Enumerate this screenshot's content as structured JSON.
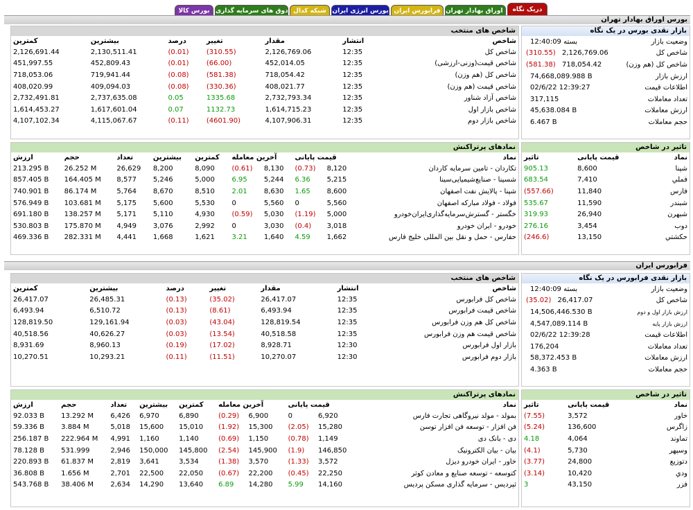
{
  "tabs": [
    {
      "label": "دریک نگاه",
      "bg": "#b30c0c"
    },
    {
      "label": "بورس اوراق بهادار تهران",
      "bg": "#2f7d1c"
    },
    {
      "label": "فرابورس ایران",
      "bg": "#d4b514"
    },
    {
      "label": "بورس انرژی ایران",
      "bg": "#1c1fa3"
    },
    {
      "label": "شبکه کدال",
      "bg": "#d4b514"
    },
    {
      "label": "صندوق های سرمایه گذاری",
      "bg": "#2f7d1c"
    },
    {
      "label": "بورس کالا",
      "bg": "#7c36a8"
    }
  ],
  "tse": {
    "title": "بورس اوراق بهادار تهران",
    "glance": {
      "title": "بازار نقدی بورس در یک نگاه",
      "rows": [
        {
          "label": "وضعیت بازار",
          "change": "",
          "value": "بسته 12:40:09"
        },
        {
          "label": "شاخص کل",
          "change": "(310.55)",
          "value": "2,126,769.06"
        },
        {
          "label": "شاخص کل (هم وزن)",
          "change": "(581.38)",
          "value": "718,054.42"
        },
        {
          "label": "ارزش بازار",
          "change": "",
          "value": "74,668,089.988 B"
        },
        {
          "label": "اطلاعات قیمت",
          "change": "",
          "value": "02/6/22 12:39:27"
        },
        {
          "label": "تعداد معاملات",
          "change": "",
          "value": "317,115"
        },
        {
          "label": "ارزش معاملات",
          "change": "",
          "value": "45,638.084 B"
        },
        {
          "label": "حجم معاملات",
          "change": "",
          "value": "6.467 B"
        }
      ]
    },
    "indices": {
      "title": "شاخص های منتخب",
      "headers": [
        "شاخص",
        "انتشار",
        "مقدار",
        "تغییر",
        "درصد",
        "بیشترین",
        "کمترین"
      ],
      "rows": [
        [
          "شاخص کل",
          "12:35",
          "2,126,769.06",
          "(310.55)",
          "(0.01)",
          "2,130,511.41",
          "2,126,691.44"
        ],
        [
          "شاخص قیمت(وزنی-ارزشی)",
          "12:35",
          "452,014.05",
          "(66.00)",
          "(0.01)",
          "452,809.43",
          "451,997.55"
        ],
        [
          "شاخص کل (هم وزن)",
          "12:35",
          "718,054.42",
          "(581.38)",
          "(0.08)",
          "719,941.44",
          "718,053.06"
        ],
        [
          "شاخص قیمت (هم وزن)",
          "12:35",
          "408,021.77",
          "(330.36)",
          "(0.08)",
          "409,094.03",
          "408,020.99"
        ],
        [
          "شاخص آزاد شناور",
          "12:35",
          "2,732,793.34",
          "1335.68",
          "0.05",
          "2,737,635.08",
          "2,732,491.81"
        ],
        [
          "شاخص بازار اول",
          "12:35",
          "1,614,715.23",
          "1132.73",
          "0.07",
          "1,617,601.04",
          "1,614,453.27"
        ],
        [
          "شاخص بازار دوم",
          "12:35",
          "4,107,906.31",
          "(4601.90)",
          "(0.11)",
          "4,115,067.67",
          "4,107,102.34"
        ]
      ]
    },
    "impact": {
      "title": "تاثیر در شاخص",
      "headers": [
        "نماد",
        "قیمت پایانی",
        "تاثیر"
      ],
      "rows": [
        [
          "شپنا",
          "8,600",
          "905.13"
        ],
        [
          "فملي",
          "7,410",
          "683.54"
        ],
        [
          "فارس",
          "11,840",
          "(557.66)"
        ],
        [
          "شبندر",
          "11,590",
          "535.67"
        ],
        [
          "شبهرن",
          "26,940",
          "319.93"
        ],
        [
          "دوب",
          "3,454",
          "276.16"
        ],
        [
          "حکشتي",
          "13,150",
          "(246.6)"
        ]
      ]
    },
    "active": {
      "title": "نمادهای پرتراکنش",
      "headers": [
        "نماد",
        "قیمت پایانی",
        "آخرین معامله",
        "کمترین",
        "بیشترین",
        "تعداد",
        "حجم",
        "ارزش"
      ],
      "rows": [
        [
          "تکاردان - تامین سرمایه کاردان",
          "8,120",
          "(0.73)",
          "8,130",
          "(0.61)",
          "8,090",
          "8,200",
          "26,629",
          "26.252 M",
          "213.295 B"
        ],
        [
          "شسینا - صنایع‌شیمیایی‌سینا",
          "5,215",
          "6.36",
          "5,244",
          "6.95",
          "5,000",
          "5,246",
          "8,577",
          "164.405 M",
          "857.405 B"
        ],
        [
          "شپنا - پالایش نفت اصفهان",
          "8,600",
          "1.65",
          "8,630",
          "2.01",
          "8,510",
          "8,670",
          "5,764",
          "86.174 M",
          "740.901 B"
        ],
        [
          "فولاد - فولاد مبارکه اصفهان",
          "5,560",
          "0",
          "5,560",
          "0",
          "5,530",
          "5,600",
          "5,175",
          "103.681 M",
          "576.949 B"
        ],
        [
          "خگستر - گسترش‌سرمایه‌گذاری‌ایران‌خودرو",
          "5,000",
          "(1.19)",
          "5,030",
          "(0.59)",
          "4,930",
          "5,110",
          "5,171",
          "138.257 M",
          "691.180 B"
        ],
        [
          "خودرو - ایران‌ خودرو",
          "3,018",
          "(0.4)",
          "3,030",
          "0",
          "2,992",
          "3,076",
          "4,949",
          "175.870 M",
          "530.803 B"
        ],
        [
          "حفارس - حمل و نقل بین المللی خلیج فارس",
          "1,662",
          "4.59",
          "1,640",
          "3.21",
          "1,621",
          "1,668",
          "4,441",
          "282.331 M",
          "469.336 B"
        ]
      ]
    }
  },
  "ifb": {
    "title": "فرابورس ایران",
    "glance": {
      "title": "بازار نقدی فرابورس در یک نگاه",
      "rows": [
        {
          "label": "وضعیت بازار",
          "change": "",
          "value": "بسته 12:40:09"
        },
        {
          "label": "شاخص کل",
          "change": "(35.02)",
          "value": "26,417.07"
        },
        {
          "label": "ارزش بازار اول و دوم",
          "change": "",
          "value": "14,506,446.530 B"
        },
        {
          "label": "ارزش بازار پایه",
          "change": "",
          "value": "4,547,089.114 B"
        },
        {
          "label": "اطلاعات قیمت",
          "change": "",
          "value": "02/6/22 12:39:28"
        },
        {
          "label": "تعداد معاملات",
          "change": "",
          "value": "176,204"
        },
        {
          "label": "ارزش معاملات",
          "change": "",
          "value": "58,372.453 B"
        },
        {
          "label": "حجم معاملات",
          "change": "",
          "value": "4.363 B"
        }
      ]
    },
    "indices": {
      "title": "شاخص های منتخب",
      "headers": [
        "شاخص",
        "انتشار",
        "مقدار",
        "تغییر",
        "درصد",
        "بیشترین",
        "کمترین"
      ],
      "rows": [
        [
          "شاخص کل فرابورس",
          "12:35",
          "26,417.07",
          "(35.02)",
          "(0.13)",
          "26,485.31",
          "26,417.07"
        ],
        [
          "شاخص قیمت فرابورس",
          "12:35",
          "6,493.94",
          "(8.61)",
          "(0.13)",
          "6,510.72",
          "6,493.94"
        ],
        [
          "شاخص کل هم وزن فرابورس",
          "12:35",
          "128,819.54",
          "(43.04)",
          "(0.03)",
          "129,161.94",
          "128,819.50"
        ],
        [
          "شاخص قیمت هم وزن فرابورس",
          "12:35",
          "40,518.58",
          "(13.54)",
          "(0.03)",
          "40,626.27",
          "40,518.56"
        ],
        [
          "بازار اول فرابورس",
          "12:30",
          "8,928.71",
          "(17.02)",
          "(0.19)",
          "8,960.13",
          "8,931.69"
        ],
        [
          "بازار دوم فرابورس",
          "12:30",
          "10,270.07",
          "(11.51)",
          "(0.11)",
          "10,293.21",
          "10,270.51"
        ]
      ]
    },
    "impact": {
      "title": "تاثیر در شاخص",
      "headers": [
        "نماد",
        "قیمت پایانی",
        "تاثیر"
      ],
      "rows": [
        [
          "خاور",
          "3,572",
          "(7.55)"
        ],
        [
          "زاگرس",
          "136,600",
          "(5.24)"
        ],
        [
          "تماوند",
          "4,064",
          "4.18"
        ],
        [
          "وسپهر",
          "5,730",
          "(4.1)"
        ],
        [
          "دتوزیع",
          "24,800",
          "(3.77)"
        ],
        [
          "ودي",
          "10,420",
          "(3.14)"
        ],
        [
          "فزر",
          "43,150",
          "3"
        ]
      ]
    },
    "active": {
      "title": "نمادهای پرتراکنش",
      "headers": [
        "نماد",
        "قیمت پایانی",
        "آخرین معامله",
        "کمترین",
        "بیشترین",
        "تعداد",
        "حجم",
        "ارزش"
      ],
      "rows": [
        [
          "بمولد - مولد نیروگاهی تجارت فارس",
          "6,920",
          "0",
          "6,900",
          "(0.29)",
          "6,890",
          "6,970",
          "6,426",
          "13.292 M",
          "92.033 B"
        ],
        [
          "فن افزار - توسعه فن افزار توسن",
          "15,280",
          "(2.05)",
          "15,300",
          "(1.92)",
          "15,010",
          "15,600",
          "5,018",
          "3.884 M",
          "59.336 B"
        ],
        [
          "دی - بانک دی",
          "1,149",
          "(0.78)",
          "1,150",
          "(0.69)",
          "1,140",
          "1,160",
          "4,991",
          "222.964 M",
          "256.187 B"
        ],
        [
          "بیان - بیان الکترونیک",
          "146,850",
          "(1.9)",
          "145,900",
          "(2.54)",
          "145,800",
          "150,000",
          "2,946",
          "531.999",
          "78.128 B"
        ],
        [
          "خاور - ایران خودرو دیزل",
          "3,572",
          "(1.33)",
          "3,570",
          "(1.38)",
          "3,534",
          "3,641",
          "2,819",
          "61.837 M",
          "220.893 B"
        ],
        [
          "کتوسعه - توسعه صنایع و معادن کوثر",
          "22,250",
          "(0.45)",
          "22,200",
          "(0.67)",
          "22,050",
          "22,500",
          "2,701",
          "1.656 M",
          "36.808 B"
        ],
        [
          "ثپردیس - سرمایه گذاری مسکن پردیس",
          "14,160",
          "5.99",
          "14,280",
          "6.89",
          "13,640",
          "14,290",
          "2,634",
          "38.406 M",
          "543.768 B"
        ]
      ]
    }
  }
}
